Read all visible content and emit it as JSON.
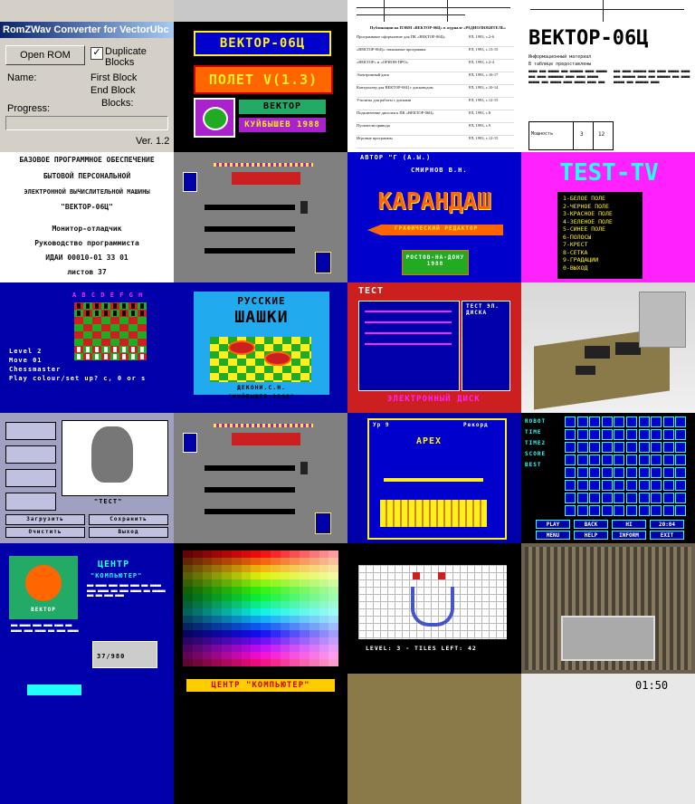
{
  "romzwav": {
    "title": "RomZWav Converter for VectorUbc",
    "open_rom": "Open ROM",
    "duplicate_blocks": "Duplicate Blocks",
    "name_label": "Name:",
    "first_block": "First Block",
    "end_block": "End Block",
    "blocks": "Blocks:",
    "progress": "Progress:",
    "version": "Ver. 1.2"
  },
  "vector_title": {
    "brand": "ВЕКТОР-06Ц",
    "flight": "ПОЛЕТ V(1.3)",
    "vector": "ВЕКТОР",
    "year": "КУЙБЫШЕВ 1988"
  },
  "doc_list": {
    "header": "Публикации на ПЭВМ «ВЕКТОР-06Ц» в журнале «РАДИОЛЮБИТЕЛЬ»",
    "rows": [
      {
        "title": "Программное оформление для ПК «ВЕКТОР-06Ц»",
        "ref": "РЛ, 1993, с.2-6"
      },
      {
        "title": "«ВЕКТОР-06Ц»: начальные программы",
        "ref": "РЛ, 1993, с.13-15"
      },
      {
        "title": "«ВЕКТОР» и «ОРИОН-ПРО»",
        "ref": "РЛ, 1993, с.2-4"
      },
      {
        "title": "Электронный диск",
        "ref": "РЛ, 1993, с.16-17"
      },
      {
        "title": "Контроллер для ВЕКТОР-06Ц с дисководом",
        "ref": "РЛ, 1993, с.10-14"
      },
      {
        "title": "Утилиты для работы с дисками",
        "ref": "РЛ, 1993, с.12-15"
      },
      {
        "title": "Подключение дисплея к ПК «ВЕКТОР-06Ц»",
        "ref": "РЛ, 1993, с.8"
      },
      {
        "title": "Пускатели привода",
        "ref": "РЛ, 1993, с.9"
      },
      {
        "title": "Игровые программы",
        "ref": "РЛ, 1993, с.12-15"
      }
    ]
  },
  "manual_text": {
    "logo": "ВЕКТОР-06Ц",
    "line1": "Информационный материал",
    "line2": "В таблице предоставлены",
    "param": "Мощность",
    "col1": "3",
    "col2": "12"
  },
  "title_page": {
    "line1": "БАЗОВОЕ ПРОГРАММНОЕ ОБЕСПЕЧЕНИЕ",
    "line2": "БЫТОВОЙ ПЕРСОНАЛЬНОЙ",
    "line3": "ЭЛЕКТРОННОЙ ВЫЧИСЛИТЕЛЬНОЙ МАШИНЫ",
    "line4": "\"ВЕКТОР-06Ц\"",
    "line5": "Монитор-отладчик",
    "line6": "Руководство программиста",
    "line7": "ИДАИ 00010-01 33 01",
    "line8": "листов 37"
  },
  "karandash": {
    "top": "АВТОР \"Г (А.Ы.)",
    "author": "СМИРНОВ В.Н.",
    "title": "КАРАНДАШ",
    "subtitle": "ГРАФИЧЕСКИЙ РЕДАКТОР",
    "city": "РОСТОВ-НА-ДОНУ",
    "year": "1988"
  },
  "testtv": {
    "title": "TEST-TV",
    "items": [
      "1-БЕЛОЕ ПОЛЕ",
      "2-ЧЕРНОЕ ПОЛЕ",
      "3-КРАСНОЕ ПОЛЕ",
      "4-ЗЕЛЕНОЕ ПОЛЕ",
      "5-СИНЕЕ ПОЛЕ",
      "6-ПОЛОСЫ",
      "7-КРЕСТ",
      "8-СЕТКА",
      "9-ГРАДАЦИИ",
      "0-ВЫХОД"
    ]
  },
  "chess": {
    "letters": "A B C D E F G H",
    "info1": "Level 2",
    "info2": "Move 01",
    "info3": "Chessmaster",
    "info4": "Play colour/set up? c, 0 or s"
  },
  "shashki": {
    "line1": "РУССКИЕ",
    "line2": "ШАШКИ",
    "author": "ДЕКОНИ.С.Н.",
    "year": "\"КУЙБЫШЕВ-1988\""
  },
  "test_disk": {
    "title": "ТЕСТ",
    "status": "ТЕСТ ЭЛ. ДИСКА",
    "footer": "ЭЛЕКТРОННЫЙ ДИСК"
  },
  "photo_editor": {
    "caption": "\"ТЕСТ\"",
    "buttons": [
      "Загрузить",
      "Сохранить",
      "Очистить",
      "Выход"
    ]
  },
  "apex": {
    "title": "APEX",
    "score": "Ур 9",
    "label": "Рекорд"
  },
  "matrix": {
    "side": [
      "ROBOT",
      "TIME",
      "TIME2",
      "SCORE",
      "BEST"
    ],
    "buttons": [
      "PLAY",
      "BACK",
      "HI",
      "20:04",
      "MENU",
      "HELP",
      "INFORM",
      "EXIT"
    ]
  },
  "computer_center": {
    "title1": "ЦЕНТР",
    "title2": "\"КОМПЬЮТЕР\"",
    "book": "ВЕКТОР",
    "price": "37/980"
  },
  "puzzle": {
    "status": "LEVEL: 3 - TILES LEFT: 42"
  },
  "bottom_row": {
    "center": "ЦЕНТР \"КОМПЬЮТЕР\"",
    "clock": "01:50"
  },
  "colors": {
    "vector_blue": "#0000aa",
    "vector_red": "#cc2020",
    "vector_yellow": "#ffee22",
    "vector_green": "#22aa22",
    "magenta": "#ff22ff",
    "cyan": "#22ffff"
  }
}
